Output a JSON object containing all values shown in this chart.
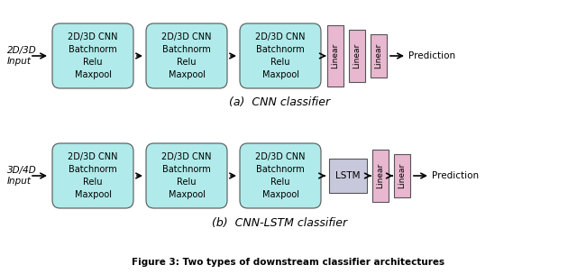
{
  "bg_color": "#ffffff",
  "fig_width": 6.4,
  "fig_height": 3.04,
  "cnn_color": "#b0eaea",
  "linear_color": "#e8b8d0",
  "lstm_color": "#c8c8dc",
  "border_color": "#555555",
  "input_label_top": "2D/3D\nInput",
  "input_label_bot": "3D/4D\nInput",
  "cnn_text": "2D/3D CNN\nBatchnorm\nRelu\nMaxpool",
  "prediction": "Prediction",
  "linear_text": "Linear",
  "lstm_text": "LSTM",
  "label_a": "(a)  CNN classifier",
  "label_b": "(b)  CNN-LSTM classifier",
  "caption": "Figure 3: Two types of downstream classifier architectures"
}
